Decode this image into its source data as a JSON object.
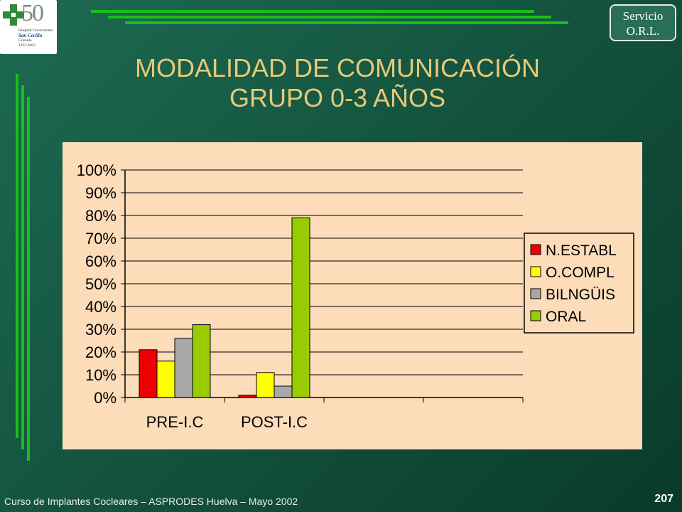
{
  "slide": {
    "title_line1": "MODALIDAD DE COMUNICACIÓN",
    "title_line2": "GRUPO 0-3 AÑOS",
    "footer": "Curso de Implantes Cocleares – ASPRODES Huelva – Mayo 2002",
    "page_number": "207"
  },
  "logo": {
    "number": "50",
    "line1": "Hospital Universitario",
    "line2": "San Cecilio",
    "line3": "Granada",
    "line4": "1952-2002"
  },
  "badge": {
    "line1": "Servicio",
    "line2": "O.R.L."
  },
  "colors": {
    "accent_green": "#18c018",
    "title": "#e8c878",
    "chart_background": "#fcdcb9"
  },
  "chart_data": {
    "type": "bar",
    "categories": [
      "PRE-I.C",
      "POST-I.C",
      "",
      ""
    ],
    "series": [
      {
        "name": "N.ESTABL",
        "color": "#ee0000",
        "values": [
          21,
          1,
          null,
          null
        ]
      },
      {
        "name": "O.COMPL",
        "color": "#ffff00",
        "values": [
          16,
          11,
          null,
          null
        ]
      },
      {
        "name": "BILNGÜIS",
        "color": "#a8a8a8",
        "values": [
          26,
          5,
          null,
          null
        ]
      },
      {
        "name": "ORAL",
        "color": "#99cc00",
        "values": [
          32,
          79,
          null,
          null
        ]
      }
    ],
    "ylim": [
      0,
      100
    ],
    "y_ticks": [
      "0%",
      "10%",
      "20%",
      "30%",
      "40%",
      "50%",
      "60%",
      "70%",
      "80%",
      "90%",
      "100%"
    ],
    "grid": true,
    "legend_position": "right"
  }
}
